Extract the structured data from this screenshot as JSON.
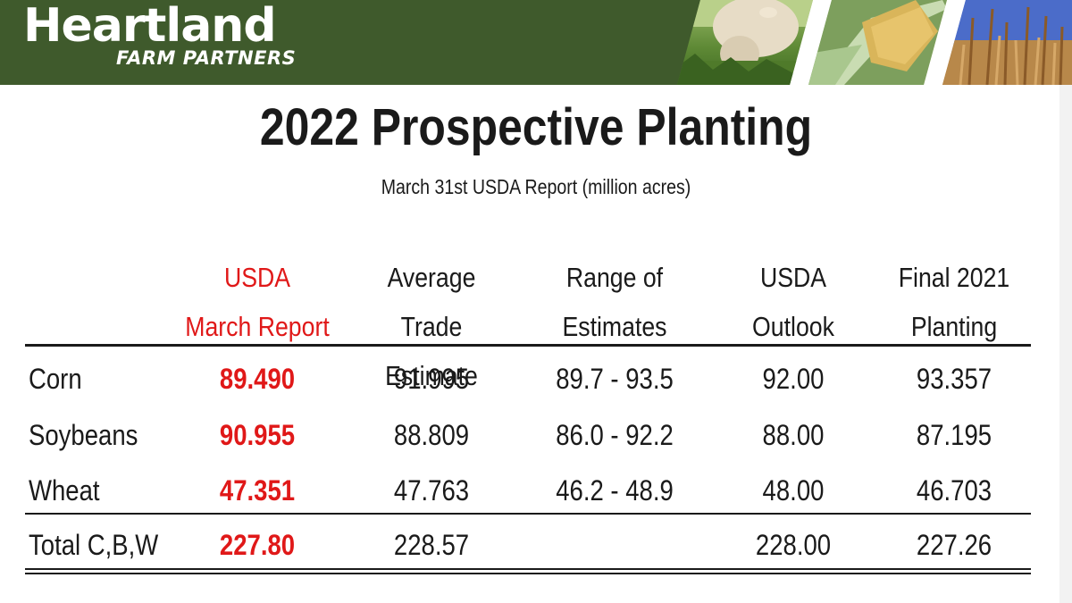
{
  "header": {
    "brand_name": "Heartland",
    "brand_sub": "FARM PARTNERS"
  },
  "colors": {
    "brand_green": "#3f5a2c",
    "highlight_red": "#e01818",
    "text": "#1a1a1a"
  },
  "slide": {
    "title": "2022 Prospective Planting",
    "subtitle": "March 31st  USDA Report  (million acres)"
  },
  "table": {
    "columns": [
      {
        "line1": "USDA",
        "line2": "March Report"
      },
      {
        "line1": "Average Trade",
        "line2": "Estimate"
      },
      {
        "line1": "Range of",
        "line2": "Estimates"
      },
      {
        "line1": "USDA",
        "line2": "Outlook"
      },
      {
        "line1": "Final 2021",
        "line2": "Planting"
      }
    ],
    "rows": [
      {
        "label": "Corn",
        "values": [
          "89.490",
          "91.995",
          "89.7 - 93.5",
          "92.00",
          "93.357"
        ]
      },
      {
        "label": "Soybeans",
        "values": [
          "90.955",
          "88.809",
          "86.0 - 92.2",
          "88.00",
          "87.195"
        ]
      },
      {
        "label": "Wheat",
        "values": [
          "47.351",
          "47.763",
          "46.2 - 48.9",
          "48.00",
          "46.703"
        ]
      }
    ],
    "total": {
      "label": "Total  C,B,W",
      "values": [
        "227.80",
        "228.57",
        "",
        "228.00",
        "227.26"
      ]
    }
  }
}
